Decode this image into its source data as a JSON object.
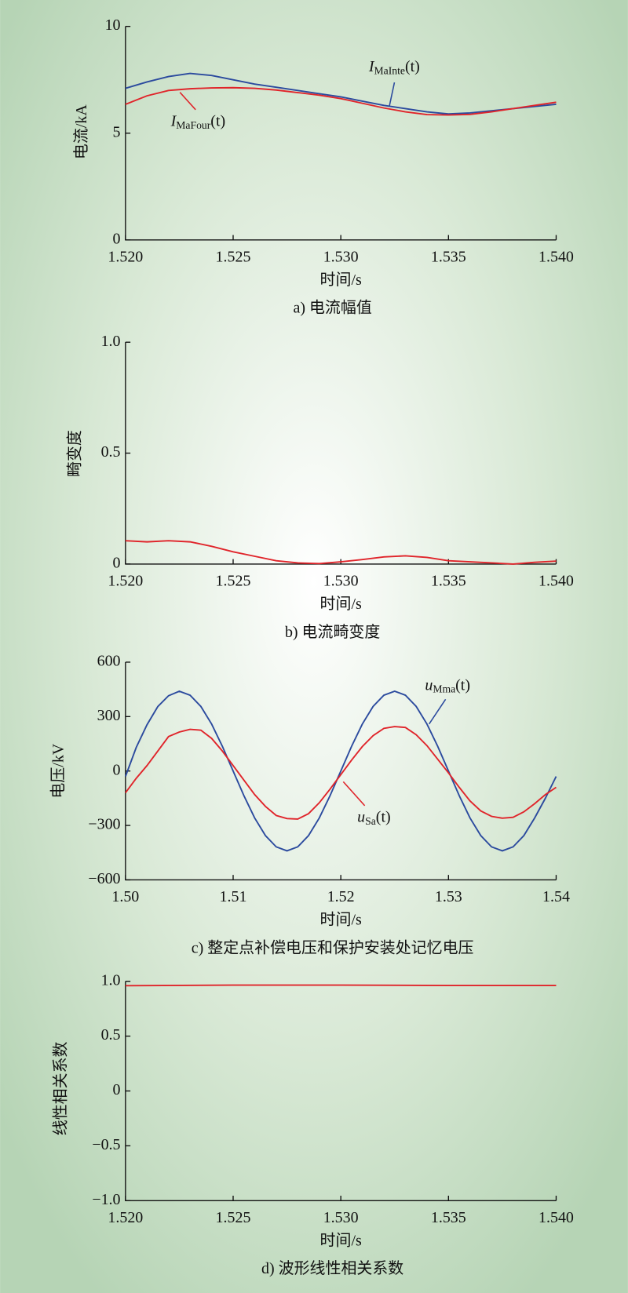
{
  "chart_data": [
    {
      "type": "line",
      "caption": "a) 电流幅值",
      "xlabel": "时间/s",
      "ylabel": "电流/kA",
      "x": [
        1.52,
        1.521,
        1.522,
        1.523,
        1.524,
        1.525,
        1.526,
        1.527,
        1.528,
        1.529,
        1.53,
        1.531,
        1.532,
        1.533,
        1.534,
        1.535,
        1.536,
        1.537,
        1.538,
        1.539,
        1.54
      ],
      "series": [
        {
          "label": {
            "main": "I",
            "sub": "MaInte",
            "arg": "(t)"
          },
          "color": "#2b4a9e",
          "values": [
            7.1,
            7.4,
            7.65,
            7.8,
            7.7,
            7.5,
            7.3,
            7.15,
            7.0,
            6.85,
            6.7,
            6.5,
            6.3,
            6.15,
            6.0,
            5.9,
            5.95,
            6.05,
            6.15,
            6.25,
            6.35
          ]
        },
        {
          "label": {
            "main": "I",
            "sub": "MaFour",
            "arg": "(t)"
          },
          "color": "#e0242a",
          "values": [
            6.35,
            6.75,
            7.0,
            7.08,
            7.12,
            7.13,
            7.1,
            7.02,
            6.9,
            6.78,
            6.62,
            6.4,
            6.18,
            6.0,
            5.87,
            5.85,
            5.88,
            6.0,
            6.15,
            6.3,
            6.45
          ]
        }
      ],
      "xlim": [
        1.52,
        1.54
      ],
      "xticks": [
        {
          "value": 1.52,
          "label": "1.520"
        },
        {
          "value": 1.525,
          "label": "1.525"
        },
        {
          "value": 1.53,
          "label": "1.530"
        },
        {
          "value": 1.535,
          "label": "1.535"
        },
        {
          "value": 1.54,
          "label": "1.540"
        }
      ],
      "ylim": [
        0,
        10
      ],
      "yticks": [
        0,
        5,
        10
      ]
    },
    {
      "type": "line",
      "caption": "b) 电流畸变度",
      "xlabel": "时间/s",
      "ylabel": "畸变度",
      "x": [
        1.52,
        1.521,
        1.522,
        1.523,
        1.524,
        1.525,
        1.526,
        1.527,
        1.528,
        1.529,
        1.53,
        1.531,
        1.532,
        1.533,
        1.534,
        1.535,
        1.536,
        1.537,
        1.538,
        1.539,
        1.54
      ],
      "series": [
        {
          "color": "#e0242a",
          "values": [
            0.105,
            0.1,
            0.105,
            0.1,
            0.08,
            0.055,
            0.035,
            0.015,
            0.005,
            0.002,
            0.01,
            0.02,
            0.032,
            0.037,
            0.03,
            0.015,
            0.01,
            0.005,
            0.0,
            0.008,
            0.013
          ]
        }
      ],
      "xlim": [
        1.52,
        1.54
      ],
      "xticks": [
        {
          "value": 1.52,
          "label": "1.520"
        },
        {
          "value": 1.525,
          "label": "1.525"
        },
        {
          "value": 1.53,
          "label": "1.530"
        },
        {
          "value": 1.535,
          "label": "1.535"
        },
        {
          "value": 1.54,
          "label": "1.540"
        }
      ],
      "ylim": [
        0,
        1
      ],
      "yticks": [
        0,
        0.5,
        {
          "value": 1,
          "label": "1.0"
        }
      ]
    },
    {
      "type": "line",
      "caption": "c) 整定点补偿电压和保护安装处记忆电压",
      "xlabel": "时间/s",
      "ylabel": "电压/kV",
      "x": [
        1.5,
        1.501,
        1.502,
        1.503,
        1.504,
        1.505,
        1.506,
        1.507,
        1.508,
        1.509,
        1.51,
        1.511,
        1.512,
        1.513,
        1.514,
        1.515,
        1.516,
        1.517,
        1.518,
        1.519,
        1.52,
        1.521,
        1.522,
        1.523,
        1.524,
        1.525,
        1.526,
        1.527,
        1.528,
        1.529,
        1.53,
        1.531,
        1.532,
        1.533,
        1.534,
        1.535,
        1.536,
        1.537,
        1.538,
        1.539,
        1.54
      ],
      "series": [
        {
          "label": {
            "main": "u",
            "sub": "Mma",
            "arg": "(t)"
          },
          "color": "#2b4a9e",
          "values": [
            -30,
            130,
            255,
            355,
            415,
            440,
            418,
            356,
            259,
            136,
            0,
            -136,
            -259,
            -356,
            -418,
            -440,
            -418,
            -356,
            -259,
            -136,
            0,
            136,
            259,
            356,
            418,
            440,
            418,
            356,
            259,
            136,
            0,
            -136,
            -259,
            -356,
            -418,
            -440,
            -418,
            -356,
            -259,
            -150,
            -30
          ]
        },
        {
          "label": {
            "main": "u",
            "sub": "Sa",
            "arg": "(t)"
          },
          "color": "#e0242a",
          "values": [
            -120,
            -40,
            30,
            110,
            190,
            215,
            230,
            225,
            180,
            110,
            30,
            -50,
            -130,
            -195,
            -245,
            -262,
            -265,
            -235,
            -175,
            -100,
            -20,
            60,
            135,
            195,
            235,
            245,
            240,
            200,
            140,
            65,
            -10,
            -90,
            -165,
            -220,
            -250,
            -260,
            -255,
            -225,
            -180,
            -130,
            -90
          ]
        }
      ],
      "xlim": [
        1.5,
        1.54
      ],
      "xticks": [
        {
          "value": 1.5,
          "label": "1.50"
        },
        1.51,
        1.52,
        1.53,
        1.54
      ],
      "ylim": [
        -600,
        600
      ],
      "yticks": [
        {
          "value": -600,
          "label": "−600"
        },
        {
          "value": -300,
          "label": "−300"
        },
        0,
        300,
        600
      ]
    },
    {
      "type": "line",
      "caption": "d) 波形线性相关系数",
      "xlabel": "时间/s",
      "ylabel": "线性相关系数",
      "x": [
        1.52,
        1.525,
        1.53,
        1.535,
        1.54
      ],
      "series": [
        {
          "color": "#e0242a",
          "values": [
            0.96,
            0.965,
            0.965,
            0.962,
            0.962
          ]
        }
      ],
      "xlim": [
        1.52,
        1.54
      ],
      "xticks": [
        {
          "value": 1.52,
          "label": "1.520"
        },
        {
          "value": 1.525,
          "label": "1.525"
        },
        {
          "value": 1.53,
          "label": "1.530"
        },
        {
          "value": 1.535,
          "label": "1.535"
        },
        {
          "value": 1.54,
          "label": "1.540"
        }
      ],
      "ylim": [
        -1,
        1
      ],
      "yticks": [
        {
          "value": -1,
          "label": "−1.0"
        },
        {
          "value": -0.5,
          "label": "−0.5"
        },
        0,
        0.5,
        {
          "value": 1,
          "label": "1.0"
        }
      ]
    }
  ]
}
